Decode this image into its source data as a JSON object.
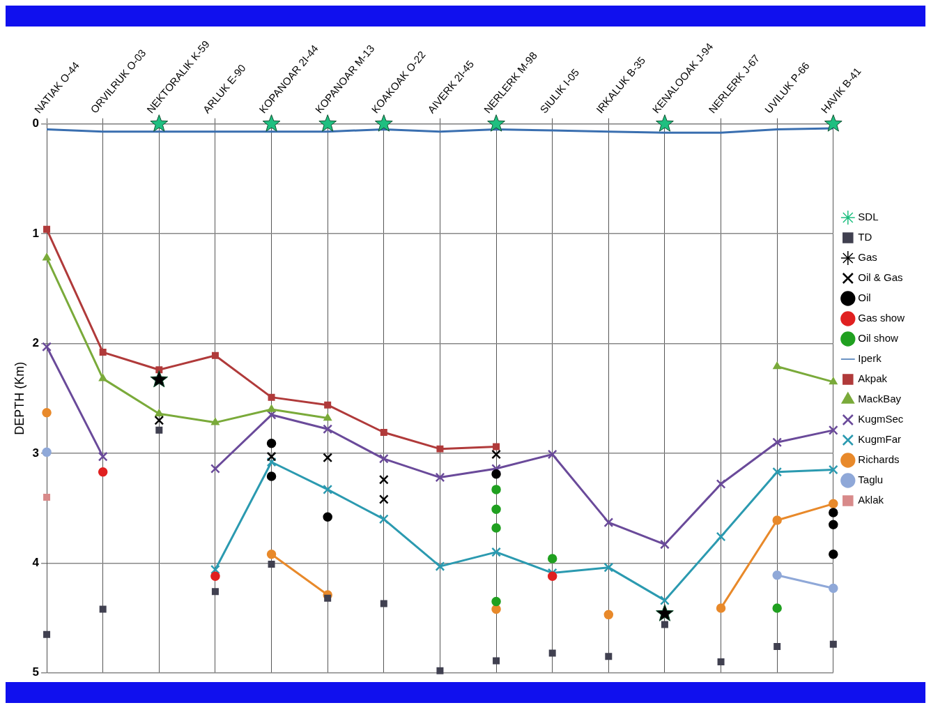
{
  "chart_data": {
    "type": "line",
    "ylabel": "DEPTH (Km)",
    "categories": [
      "NATIAK O-44",
      "ORVILRUK O-03",
      "NEKTORALIK K-59",
      "ARLUK E-90",
      "KOPANOAR 2I-44",
      "KOPANOAR M-13",
      "KOAKOAK O-22",
      "AIVERK 2I-45",
      "NERLERK M-98",
      "SIULIK I-05",
      "IRKALUK B-35",
      "KENALOOAK J-94",
      "NERLERK J-67",
      "UVILUK P-66",
      "HAVIK B-41"
    ],
    "ylim": [
      5,
      0
    ],
    "yticks": [
      0,
      1,
      2,
      3,
      4,
      5
    ],
    "grid": true,
    "legend": "right",
    "line_style": "solid",
    "series": [
      {
        "name": "SDL",
        "type": "scatter",
        "marker": "star",
        "color": "#1fbf80",
        "x": [
          "NEKTORALIK K-59",
          "KOPANOAR 2I-44",
          "KOPANOAR M-13",
          "KOAKOAK O-22",
          "NERLERK M-98",
          "KENALOOAK J-94",
          "HAVIK B-41"
        ],
        "values": [
          0,
          0,
          0,
          0,
          0,
          0,
          0
        ]
      },
      {
        "name": "Iperk",
        "marker": "none",
        "color": "#3a6fb0",
        "values": [
          0.05,
          0.07,
          0.07,
          0.07,
          0.07,
          0.07,
          0.05,
          0.07,
          0.05,
          0.06,
          0.07,
          0.08,
          0.08,
          0.05,
          0.04
        ]
      },
      {
        "name": "Akpak",
        "marker": "square",
        "color": "#b03a3a",
        "values": [
          0.96,
          2.08,
          2.24,
          2.11,
          2.49,
          2.56,
          2.81,
          2.96,
          2.94,
          null,
          null,
          null,
          null,
          null,
          null
        ]
      },
      {
        "name": "MackBay",
        "marker": "triangle",
        "color": "#7aaa3a",
        "values": [
          1.22,
          2.32,
          2.64,
          2.72,
          2.6,
          2.68,
          null,
          null,
          null,
          null,
          null,
          null,
          null,
          2.21,
          2.35
        ]
      },
      {
        "name": "KugmSec",
        "marker": "cross",
        "color": "#6a4a9a",
        "values": [
          2.03,
          3.03,
          null,
          3.14,
          2.65,
          2.78,
          3.05,
          3.22,
          3.14,
          3.01,
          3.63,
          3.83,
          3.28,
          2.9,
          2.79
        ]
      },
      {
        "name": "KugmFar",
        "marker": "cross",
        "color": "#2b9ab0",
        "values": [
          null,
          null,
          null,
          4.06,
          3.08,
          3.33,
          3.6,
          4.03,
          3.9,
          4.09,
          4.04,
          4.34,
          3.76,
          3.17,
          3.15
        ]
      },
      {
        "name": "Richards",
        "marker": "circle",
        "color": "#e8892a",
        "values": [
          2.63,
          null,
          null,
          null,
          3.92,
          4.29,
          null,
          null,
          4.42,
          null,
          4.47,
          null,
          4.41,
          3.61,
          3.46
        ]
      },
      {
        "name": "Taglu",
        "marker": "circle",
        "color": "#8fa8d8",
        "values": [
          2.99,
          null,
          null,
          null,
          null,
          null,
          null,
          null,
          null,
          null,
          null,
          null,
          null,
          4.11,
          4.23
        ]
      },
      {
        "name": "Aklak",
        "marker": "square",
        "color": "#d88a8a",
        "values": [
          3.4,
          null,
          null,
          null,
          null,
          null,
          null,
          null,
          null,
          null,
          null,
          null,
          null,
          null,
          null
        ]
      },
      {
        "name": "TD",
        "type": "scatter",
        "marker": "square",
        "color": "#404050",
        "values": [
          4.65,
          4.42,
          2.79,
          4.26,
          4.01,
          4.32,
          4.37,
          4.98,
          4.89,
          4.82,
          4.85,
          4.56,
          4.9,
          4.76,
          4.74
        ]
      },
      {
        "name": "Gas",
        "type": "scatter",
        "marker": "star",
        "color": "#000000",
        "x": [
          "NEKTORALIK K-59",
          "KENALOOAK J-94"
        ],
        "values": [
          2.33,
          4.46
        ]
      },
      {
        "name": "Oil & Gas",
        "type": "scatter",
        "marker": "cross",
        "color": "#000000",
        "x": [
          "NEKTORALIK K-59",
          "KOPANOAR 2I-44",
          "KOPANOAR M-13",
          "KOAKOAK O-22",
          "KOAKOAK O-22",
          "NERLERK M-98"
        ],
        "values": [
          2.7,
          3.03,
          3.04,
          3.24,
          3.42,
          3.01
        ]
      },
      {
        "name": "Oil",
        "type": "scatter",
        "marker": "circle",
        "color": "#000000",
        "x": [
          "KOPANOAR 2I-44",
          "KOPANOAR 2I-44",
          "KOPANOAR M-13",
          "NERLERK M-98",
          "HAVIK B-41",
          "HAVIK B-41",
          "HAVIK B-41"
        ],
        "values": [
          2.91,
          3.21,
          3.58,
          3.19,
          3.54,
          3.65,
          3.92
        ]
      },
      {
        "name": "Gas show",
        "type": "scatter",
        "marker": "circle",
        "color": "#e02020",
        "x": [
          "ORVILRUK O-03",
          "ARLUK E-90",
          "SIULIK I-05"
        ],
        "values": [
          3.17,
          4.12,
          4.12
        ]
      },
      {
        "name": "Oil show",
        "type": "scatter",
        "marker": "circle",
        "color": "#20a020",
        "x": [
          "NERLERK M-98",
          "NERLERK M-98",
          "NERLERK M-98",
          "NERLERK M-98",
          "SIULIK I-05",
          "UVILUK P-66"
        ],
        "values": [
          3.33,
          3.51,
          3.68,
          4.35,
          3.96,
          4.41
        ]
      }
    ]
  }
}
